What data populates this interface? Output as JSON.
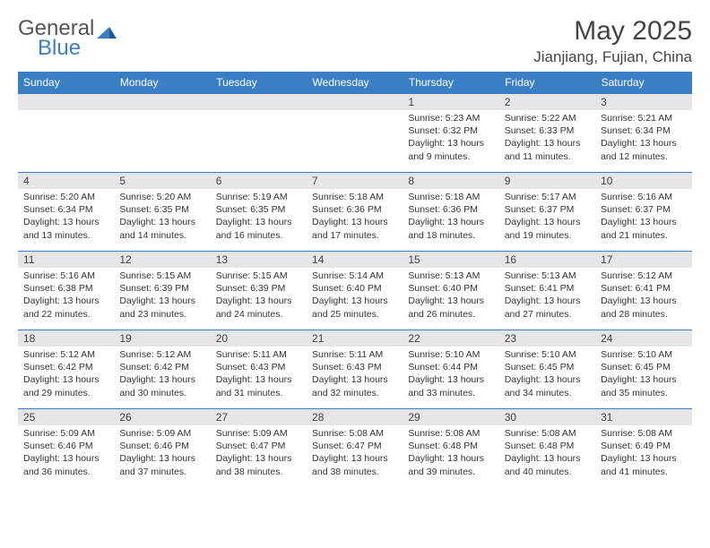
{
  "brand": {
    "part1": "General",
    "part2": "Blue"
  },
  "title": "May 2025",
  "location": "Jianjiang, Fujian, China",
  "colors": {
    "header_bg": "#3a7fc4",
    "header_text": "#ffffff",
    "daynum_bg": "#e6e6e6",
    "text": "#333333",
    "rule": "#3a7fc4"
  },
  "weekdays": [
    "Sunday",
    "Monday",
    "Tuesday",
    "Wednesday",
    "Thursday",
    "Friday",
    "Saturday"
  ],
  "weeks": [
    [
      {
        "n": "",
        "sunrise": "",
        "sunset": "",
        "daylight": ""
      },
      {
        "n": "",
        "sunrise": "",
        "sunset": "",
        "daylight": ""
      },
      {
        "n": "",
        "sunrise": "",
        "sunset": "",
        "daylight": ""
      },
      {
        "n": "",
        "sunrise": "",
        "sunset": "",
        "daylight": ""
      },
      {
        "n": "1",
        "sunrise": "Sunrise: 5:23 AM",
        "sunset": "Sunset: 6:32 PM",
        "daylight": "Daylight: 13 hours and 9 minutes."
      },
      {
        "n": "2",
        "sunrise": "Sunrise: 5:22 AM",
        "sunset": "Sunset: 6:33 PM",
        "daylight": "Daylight: 13 hours and 11 minutes."
      },
      {
        "n": "3",
        "sunrise": "Sunrise: 5:21 AM",
        "sunset": "Sunset: 6:34 PM",
        "daylight": "Daylight: 13 hours and 12 minutes."
      }
    ],
    [
      {
        "n": "4",
        "sunrise": "Sunrise: 5:20 AM",
        "sunset": "Sunset: 6:34 PM",
        "daylight": "Daylight: 13 hours and 13 minutes."
      },
      {
        "n": "5",
        "sunrise": "Sunrise: 5:20 AM",
        "sunset": "Sunset: 6:35 PM",
        "daylight": "Daylight: 13 hours and 14 minutes."
      },
      {
        "n": "6",
        "sunrise": "Sunrise: 5:19 AM",
        "sunset": "Sunset: 6:35 PM",
        "daylight": "Daylight: 13 hours and 16 minutes."
      },
      {
        "n": "7",
        "sunrise": "Sunrise: 5:18 AM",
        "sunset": "Sunset: 6:36 PM",
        "daylight": "Daylight: 13 hours and 17 minutes."
      },
      {
        "n": "8",
        "sunrise": "Sunrise: 5:18 AM",
        "sunset": "Sunset: 6:36 PM",
        "daylight": "Daylight: 13 hours and 18 minutes."
      },
      {
        "n": "9",
        "sunrise": "Sunrise: 5:17 AM",
        "sunset": "Sunset: 6:37 PM",
        "daylight": "Daylight: 13 hours and 19 minutes."
      },
      {
        "n": "10",
        "sunrise": "Sunrise: 5:16 AM",
        "sunset": "Sunset: 6:37 PM",
        "daylight": "Daylight: 13 hours and 21 minutes."
      }
    ],
    [
      {
        "n": "11",
        "sunrise": "Sunrise: 5:16 AM",
        "sunset": "Sunset: 6:38 PM",
        "daylight": "Daylight: 13 hours and 22 minutes."
      },
      {
        "n": "12",
        "sunrise": "Sunrise: 5:15 AM",
        "sunset": "Sunset: 6:39 PM",
        "daylight": "Daylight: 13 hours and 23 minutes."
      },
      {
        "n": "13",
        "sunrise": "Sunrise: 5:15 AM",
        "sunset": "Sunset: 6:39 PM",
        "daylight": "Daylight: 13 hours and 24 minutes."
      },
      {
        "n": "14",
        "sunrise": "Sunrise: 5:14 AM",
        "sunset": "Sunset: 6:40 PM",
        "daylight": "Daylight: 13 hours and 25 minutes."
      },
      {
        "n": "15",
        "sunrise": "Sunrise: 5:13 AM",
        "sunset": "Sunset: 6:40 PM",
        "daylight": "Daylight: 13 hours and 26 minutes."
      },
      {
        "n": "16",
        "sunrise": "Sunrise: 5:13 AM",
        "sunset": "Sunset: 6:41 PM",
        "daylight": "Daylight: 13 hours and 27 minutes."
      },
      {
        "n": "17",
        "sunrise": "Sunrise: 5:12 AM",
        "sunset": "Sunset: 6:41 PM",
        "daylight": "Daylight: 13 hours and 28 minutes."
      }
    ],
    [
      {
        "n": "18",
        "sunrise": "Sunrise: 5:12 AM",
        "sunset": "Sunset: 6:42 PM",
        "daylight": "Daylight: 13 hours and 29 minutes."
      },
      {
        "n": "19",
        "sunrise": "Sunrise: 5:12 AM",
        "sunset": "Sunset: 6:42 PM",
        "daylight": "Daylight: 13 hours and 30 minutes."
      },
      {
        "n": "20",
        "sunrise": "Sunrise: 5:11 AM",
        "sunset": "Sunset: 6:43 PM",
        "daylight": "Daylight: 13 hours and 31 minutes."
      },
      {
        "n": "21",
        "sunrise": "Sunrise: 5:11 AM",
        "sunset": "Sunset: 6:43 PM",
        "daylight": "Daylight: 13 hours and 32 minutes."
      },
      {
        "n": "22",
        "sunrise": "Sunrise: 5:10 AM",
        "sunset": "Sunset: 6:44 PM",
        "daylight": "Daylight: 13 hours and 33 minutes."
      },
      {
        "n": "23",
        "sunrise": "Sunrise: 5:10 AM",
        "sunset": "Sunset: 6:45 PM",
        "daylight": "Daylight: 13 hours and 34 minutes."
      },
      {
        "n": "24",
        "sunrise": "Sunrise: 5:10 AM",
        "sunset": "Sunset: 6:45 PM",
        "daylight": "Daylight: 13 hours and 35 minutes."
      }
    ],
    [
      {
        "n": "25",
        "sunrise": "Sunrise: 5:09 AM",
        "sunset": "Sunset: 6:46 PM",
        "daylight": "Daylight: 13 hours and 36 minutes."
      },
      {
        "n": "26",
        "sunrise": "Sunrise: 5:09 AM",
        "sunset": "Sunset: 6:46 PM",
        "daylight": "Daylight: 13 hours and 37 minutes."
      },
      {
        "n": "27",
        "sunrise": "Sunrise: 5:09 AM",
        "sunset": "Sunset: 6:47 PM",
        "daylight": "Daylight: 13 hours and 38 minutes."
      },
      {
        "n": "28",
        "sunrise": "Sunrise: 5:08 AM",
        "sunset": "Sunset: 6:47 PM",
        "daylight": "Daylight: 13 hours and 38 minutes."
      },
      {
        "n": "29",
        "sunrise": "Sunrise: 5:08 AM",
        "sunset": "Sunset: 6:48 PM",
        "daylight": "Daylight: 13 hours and 39 minutes."
      },
      {
        "n": "30",
        "sunrise": "Sunrise: 5:08 AM",
        "sunset": "Sunset: 6:48 PM",
        "daylight": "Daylight: 13 hours and 40 minutes."
      },
      {
        "n": "31",
        "sunrise": "Sunrise: 5:08 AM",
        "sunset": "Sunset: 6:49 PM",
        "daylight": "Daylight: 13 hours and 41 minutes."
      }
    ]
  ]
}
